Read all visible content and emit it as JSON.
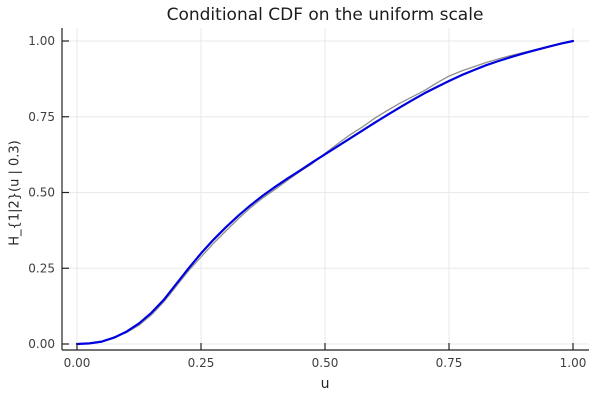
{
  "figure": {
    "background": "#ffffff"
  },
  "chart_data": {
    "type": "line",
    "title": "Conditional CDF on the uniform scale",
    "xlabel": "u",
    "ylabel": "H_{1|2}(u | 0.3)",
    "xlim": [
      0.0,
      1.0
    ],
    "ylim": [
      0.0,
      1.0
    ],
    "grid": true,
    "legend": "none",
    "xticks": {
      "values": [
        0.0,
        0.25,
        0.5,
        0.75,
        1.0
      ],
      "labels": [
        "0.00",
        "0.25",
        "0.50",
        "0.75",
        "1.00"
      ]
    },
    "yticks": {
      "values": [
        0.0,
        0.25,
        0.5,
        0.75,
        1.0
      ],
      "labels": [
        "0.00",
        "0.25",
        "0.50",
        "0.75",
        "1.00"
      ]
    },
    "colors": {
      "grid": "#e9e9e9",
      "axis": "#222222",
      "tick_text": "#3f3f3f",
      "series_gray": "#8f8f8f",
      "series_blue": "#0000df"
    },
    "series": [
      {
        "name": "series-gray-jagged",
        "color": "#8f8f8f",
        "stroke_width": 1.3,
        "x": [
          0.0,
          0.025,
          0.05,
          0.075,
          0.1,
          0.125,
          0.15,
          0.175,
          0.2,
          0.225,
          0.25,
          0.275,
          0.3,
          0.325,
          0.35,
          0.375,
          0.4,
          0.425,
          0.45,
          0.475,
          0.5,
          0.525,
          0.55,
          0.575,
          0.6,
          0.625,
          0.65,
          0.675,
          0.7,
          0.725,
          0.75,
          0.775,
          0.8,
          0.825,
          0.85,
          0.875,
          0.9,
          0.925,
          0.95,
          0.975,
          1.0
        ],
        "y": [
          0.0,
          0.003,
          0.007,
          0.023,
          0.038,
          0.062,
          0.096,
          0.139,
          0.19,
          0.242,
          0.287,
          0.332,
          0.373,
          0.413,
          0.45,
          0.483,
          0.511,
          0.541,
          0.57,
          0.596,
          0.629,
          0.66,
          0.69,
          0.716,
          0.745,
          0.77,
          0.794,
          0.815,
          0.836,
          0.861,
          0.884,
          0.901,
          0.915,
          0.929,
          0.941,
          0.952,
          0.962,
          0.972,
          0.982,
          0.992,
          1.0
        ]
      },
      {
        "name": "series-blue-smooth",
        "color": "#0000df",
        "stroke_width": 2.2,
        "x": [
          0.0,
          0.025,
          0.05,
          0.075,
          0.1,
          0.125,
          0.15,
          0.175,
          0.2,
          0.225,
          0.25,
          0.275,
          0.3,
          0.325,
          0.35,
          0.375,
          0.4,
          0.425,
          0.45,
          0.475,
          0.5,
          0.525,
          0.55,
          0.575,
          0.6,
          0.625,
          0.65,
          0.675,
          0.7,
          0.725,
          0.75,
          0.775,
          0.8,
          0.825,
          0.85,
          0.875,
          0.9,
          0.925,
          0.95,
          0.975,
          1.0
        ],
        "y": [
          0.0,
          0.002,
          0.008,
          0.021,
          0.041,
          0.068,
          0.103,
          0.146,
          0.198,
          0.25,
          0.299,
          0.344,
          0.385,
          0.423,
          0.458,
          0.49,
          0.519,
          0.547,
          0.573,
          0.6,
          0.626,
          0.652,
          0.678,
          0.704,
          0.73,
          0.755,
          0.78,
          0.804,
          0.827,
          0.848,
          0.868,
          0.887,
          0.904,
          0.92,
          0.934,
          0.947,
          0.959,
          0.97,
          0.981,
          0.991,
          1.0
        ]
      }
    ]
  }
}
